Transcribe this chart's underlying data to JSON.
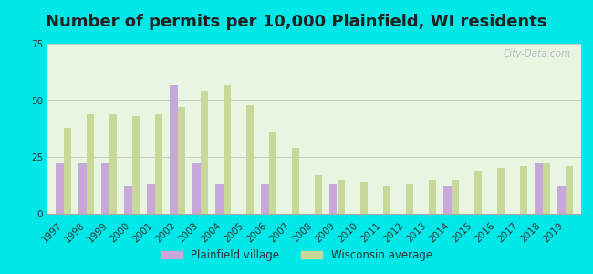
{
  "title": "Number of permits per 10,000 Plainfield, WI residents",
  "years": [
    1997,
    1998,
    1999,
    2000,
    2001,
    2002,
    2003,
    2004,
    2005,
    2006,
    2007,
    2008,
    2009,
    2010,
    2011,
    2012,
    2013,
    2014,
    2015,
    2016,
    2017,
    2018,
    2019
  ],
  "plainfield": [
    22,
    22,
    22,
    12,
    13,
    57,
    22,
    13,
    0,
    13,
    0,
    0,
    13,
    0,
    0,
    0,
    0,
    12,
    0,
    0,
    0,
    22,
    12
  ],
  "wisconsin": [
    38,
    44,
    44,
    43,
    44,
    47,
    54,
    57,
    48,
    36,
    29,
    17,
    15,
    14,
    12,
    13,
    15,
    15,
    19,
    20,
    21,
    22,
    21
  ],
  "plainfield_color": "#c8a8d8",
  "wisconsin_color": "#c8d898",
  "ylim": [
    0,
    75
  ],
  "yticks": [
    0,
    25,
    50,
    75
  ],
  "bar_width": 0.35,
  "title_fontsize": 13,
  "tick_fontsize": 7.5,
  "outer_bg": "#00e8e8",
  "plot_bg": "#e8f5e0",
  "legend_plainfield": "Plainfield village",
  "legend_wisconsin": "Wisconsin average",
  "watermark": "City-Data.com"
}
